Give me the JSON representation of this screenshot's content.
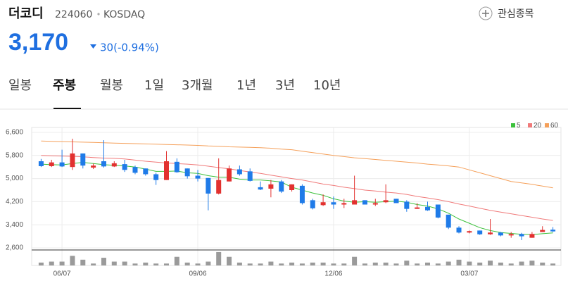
{
  "header": {
    "name": "더코디",
    "code": "224060",
    "market": "KOSDAQ",
    "watch": "관심종목",
    "price": "3,170",
    "change": "30(-0.94%)"
  },
  "tabs": [
    "일봉",
    "주봉",
    "월봉",
    "1일",
    "3개월",
    "1년",
    "3년",
    "10년"
  ],
  "chart_data": {
    "type": "candlestick",
    "up_color": "#e2312f",
    "down_color": "#1f7be8",
    "categories": [
      null,
      null,
      "06/07",
      null,
      null,
      null,
      null,
      null,
      null,
      null,
      null,
      null,
      null,
      null,
      null,
      "09/06",
      null,
      null,
      null,
      null,
      null,
      null,
      null,
      null,
      null,
      null,
      null,
      null,
      "12/06",
      null,
      null,
      null,
      null,
      null,
      null,
      null,
      null,
      null,
      null,
      null,
      null,
      "03/07",
      null,
      null,
      null,
      null,
      null,
      null,
      null,
      null
    ],
    "open": [
      5600,
      5430,
      5560,
      5400,
      5870,
      5380,
      5600,
      5420,
      5500,
      5400,
      5350,
      5150,
      4950,
      5580,
      5350,
      5100,
      5020,
      4480,
      4900,
      5320,
      5250,
      4700,
      4650,
      4900,
      4600,
      4750,
      4250,
      4080,
      4180,
      4100,
      4100,
      4250,
      4100,
      4180,
      4300,
      4200,
      3950,
      4020,
      4100,
      3750,
      3300,
      3130,
      3200,
      3070,
      3130,
      3030,
      3080,
      2950,
      3150,
      3230
    ],
    "high": [
      5680,
      5650,
      6000,
      6380,
      5870,
      5520,
      6330,
      5600,
      5650,
      5450,
      5350,
      5200,
      5950,
      5700,
      5350,
      5300,
      5020,
      5700,
      5450,
      5450,
      5350,
      4900,
      4950,
      4950,
      4800,
      4800,
      4300,
      4450,
      4380,
      4300,
      5100,
      4250,
      4300,
      4800,
      4300,
      4250,
      4150,
      4200,
      4100,
      3750,
      3350,
      3200,
      3200,
      3600,
      3150,
      3150,
      3120,
      3150,
      3350,
      3320
    ],
    "low": [
      5400,
      5400,
      5400,
      5300,
      5350,
      5330,
      5380,
      5400,
      5230,
      5150,
      5100,
      4780,
      4950,
      5200,
      5000,
      4900,
      3900,
      4450,
      4900,
      5100,
      4900,
      4600,
      4350,
      4500,
      4550,
      4100,
      3930,
      4050,
      3950,
      3980,
      4100,
      4100,
      4050,
      4150,
      4150,
      3850,
      3950,
      3880,
      3620,
      3250,
      3100,
      3100,
      3050,
      3050,
      3000,
      2950,
      2870,
      2950,
      3150,
      3150
    ],
    "close": [
      5430,
      5560,
      5420,
      5870,
      5450,
      5450,
      5420,
      5530,
      5300,
      5200,
      5150,
      4950,
      5600,
      5220,
      5080,
      5000,
      4480,
      4950,
      5350,
      5150,
      4920,
      4620,
      4800,
      4550,
      4800,
      4150,
      3970,
      4180,
      4100,
      4150,
      4250,
      4100,
      4150,
      4250,
      4150,
      3950,
      4000,
      3900,
      3650,
      3300,
      3130,
      3180,
      3070,
      3130,
      3030,
      3080,
      3000,
      3080,
      3220,
      3170
    ],
    "volume": [
      3,
      4,
      4,
      10,
      6,
      2,
      8,
      4,
      4,
      2,
      3,
      2,
      2,
      9,
      3,
      2,
      4,
      14,
      9,
      3,
      2,
      2,
      4,
      2,
      3,
      2,
      3,
      3,
      2,
      2,
      9,
      2,
      3,
      3,
      2,
      5,
      2,
      3,
      2,
      4,
      6,
      4,
      3,
      5,
      3,
      2,
      4,
      5,
      3,
      2
    ],
    "series": [
      {
        "name": "5",
        "color": "#3cc13c",
        "values": [
          5500,
          5480,
          5470,
          5520,
          5560,
          5520,
          5480,
          5460,
          5440,
          5400,
          5330,
          5250,
          5250,
          5260,
          5200,
          5180,
          5100,
          5050,
          5050,
          4980,
          4950,
          4950,
          4920,
          4880,
          4700,
          4600,
          4500,
          4420,
          4300,
          4220,
          4180,
          4200,
          4180,
          4200,
          4220,
          4180,
          4100,
          4050,
          3950,
          3800,
          3600,
          3450,
          3300,
          3200,
          3130,
          3100,
          3070,
          3060,
          3090,
          3120
        ]
      },
      {
        "name": "20",
        "color": "#f07a7a",
        "values": [
          5800,
          5790,
          5780,
          5770,
          5750,
          5730,
          5710,
          5700,
          5680,
          5640,
          5600,
          5570,
          5540,
          5520,
          5500,
          5470,
          5430,
          5380,
          5340,
          5280,
          5230,
          5180,
          5120,
          5060,
          5000,
          4950,
          4880,
          4810,
          4760,
          4700,
          4650,
          4600,
          4570,
          4530,
          4500,
          4450,
          4380,
          4330,
          4270,
          4200,
          4120,
          4050,
          3970,
          3900,
          3840,
          3780,
          3720,
          3660,
          3600,
          3550
        ]
      },
      {
        "name": "60",
        "color": "#f5a05a",
        "values": [
          6300,
          6290,
          6280,
          6270,
          6260,
          6250,
          6240,
          6230,
          6220,
          6210,
          6200,
          6190,
          6180,
          6170,
          6160,
          6150,
          6130,
          6120,
          6100,
          6090,
          6080,
          6070,
          6050,
          6020,
          6000,
          5950,
          5900,
          5850,
          5800,
          5760,
          5720,
          5690,
          5660,
          5630,
          5600,
          5570,
          5540,
          5500,
          5470,
          5440,
          5400,
          5300,
          5200,
          5100,
          5000,
          4900,
          4850,
          4800,
          4740,
          4680
        ]
      }
    ],
    "ylim": [
      2600,
      6600
    ],
    "yticks": [
      {
        "value": 6600,
        "label": "6,600"
      },
      {
        "value": 5800,
        "label": "5,800"
      },
      {
        "value": 5000,
        "label": "5,000"
      },
      {
        "value": 4200,
        "label": "4,200"
      },
      {
        "value": 3400,
        "label": "3,400"
      },
      {
        "value": 2600,
        "label": "2,600"
      }
    ],
    "grid": true
  }
}
